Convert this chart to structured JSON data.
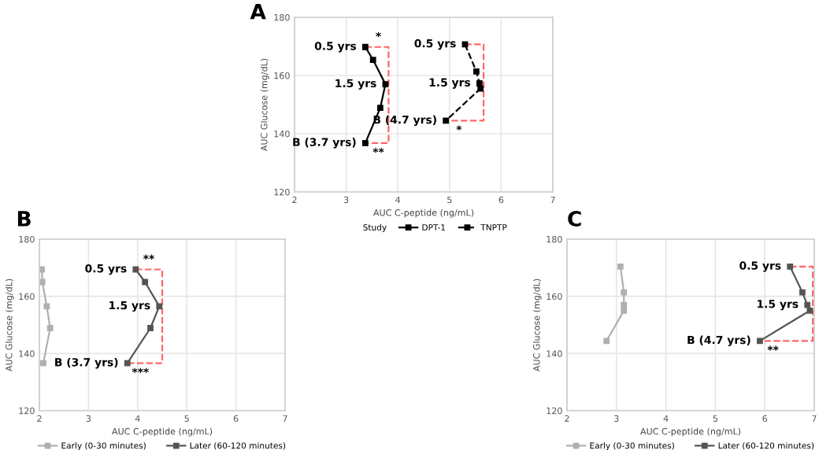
{
  "chart_data": [
    {
      "type": "line",
      "title": "A",
      "xlabel": "AUC C-peptide (ng/mL)",
      "ylabel": "AUC Glucose (mg/dL)",
      "xlim": [
        2,
        7
      ],
      "xticks": [
        2,
        3,
        4,
        5,
        6,
        7
      ],
      "ylim": [
        120,
        180
      ],
      "yticks": [
        120,
        140,
        160,
        180
      ],
      "grid": true,
      "legend": "bottom",
      "legend_title": "Study",
      "marker": "square",
      "series": [
        {
          "name": "DPT-1",
          "color": "#000000",
          "line_style": "solid",
          "x": [
            3.37,
            3.52,
            3.76,
            3.66,
            3.37
          ],
          "values": [
            169.8,
            165.4,
            157,
            148.9,
            136.8
          ]
        },
        {
          "name": "TNPTP",
          "color": "#000000",
          "line_style": "dashed",
          "x": [
            5.3,
            5.52,
            5.58,
            5.6,
            4.93
          ],
          "values": [
            170.7,
            161.4,
            157.3,
            155.5,
            144.5
          ]
        }
      ],
      "annotations": [
        {
          "text": "0.5 yrs",
          "x": 3.37,
          "y": 169.8
        },
        {
          "text": "1.5 yrs",
          "x": 3.76,
          "y": 157
        },
        {
          "text": "B (3.7 yrs)",
          "x": 3.37,
          "y": 136.8
        },
        {
          "text": "0.5 yrs",
          "x": 5.3,
          "y": 170.7
        },
        {
          "text": "1.5 yrs",
          "x": 5.58,
          "y": 157.3
        },
        {
          "text": "B (4.7 yrs)",
          "x": 4.93,
          "y": 144.5
        },
        {
          "text": "*",
          "x": 3.37,
          "y": 169.8
        },
        {
          "text": "**",
          "x": 3.37,
          "y": 136.8
        },
        {
          "text": "*",
          "x": 4.93,
          "y": 144.5
        }
      ]
    },
    {
      "type": "line",
      "title": "B",
      "xlabel": "AUC C-peptide (ng/mL)",
      "ylabel": "AUC Glucose (mg/dL)",
      "xlim": [
        2,
        7
      ],
      "xticks": [
        2,
        3,
        4,
        5,
        6,
        7
      ],
      "ylim": [
        120,
        180
      ],
      "yticks": [
        120,
        140,
        160,
        180
      ],
      "grid": true,
      "legend": "bottom",
      "marker": "square",
      "series": [
        {
          "name": "Early (0-30 minutes)",
          "color": "#b0b0b0",
          "line_style": "solid",
          "x": [
            2.05,
            2.06,
            2.15,
            2.22,
            2.08
          ],
          "values": [
            169.4,
            165,
            156.5,
            148.9,
            136.6
          ]
        },
        {
          "name": "Later (60-120 minutes)",
          "color": "#555555",
          "line_style": "solid",
          "x": [
            3.96,
            4.15,
            4.44,
            4.26,
            3.79
          ],
          "values": [
            169.4,
            165,
            156.5,
            148.9,
            136.6
          ]
        }
      ],
      "annotations": [
        {
          "text": "0.5 yrs",
          "x": 3.96,
          "y": 169.4
        },
        {
          "text": "1.5 yrs",
          "x": 4.44,
          "y": 156.5
        },
        {
          "text": "B (3.7 yrs)",
          "x": 3.79,
          "y": 136.6
        },
        {
          "text": "**",
          "x": 3.96,
          "y": 169.4
        },
        {
          "text": "***",
          "x": 3.79,
          "y": 136.6
        }
      ]
    },
    {
      "type": "line",
      "title": "C",
      "xlabel": "AUC C-peptide (ng/mL)",
      "ylabel": "AUC Glucose (mg/dL)",
      "xlim": [
        2,
        7
      ],
      "xticks": [
        2,
        3,
        4,
        5,
        6,
        7
      ],
      "ylim": [
        120,
        180
      ],
      "yticks": [
        120,
        140,
        160,
        180
      ],
      "grid": true,
      "legend": "bottom",
      "marker": "square",
      "series": [
        {
          "name": "Early (0-30 minutes)",
          "color": "#b0b0b0",
          "line_style": "solid",
          "x": [
            3.08,
            3.15,
            3.15,
            3.15,
            2.8
          ],
          "values": [
            170.4,
            161.4,
            157,
            155,
            144.4
          ]
        },
        {
          "name": "Later (60-120 minutes)",
          "color": "#555555",
          "line_style": "solid",
          "x": [
            6.51,
            6.76,
            6.86,
            6.91,
            5.9
          ],
          "values": [
            170.4,
            161.4,
            157,
            155,
            144.4
          ]
        }
      ],
      "annotations": [
        {
          "text": "0.5 yrs",
          "x": 6.51,
          "y": 170.4
        },
        {
          "text": "1.5 yrs",
          "x": 6.86,
          "y": 157
        },
        {
          "text": "B (4.7 yrs)",
          "x": 5.9,
          "y": 144.4
        },
        {
          "text": "**",
          "x": 5.9,
          "y": 144.4
        }
      ]
    }
  ]
}
